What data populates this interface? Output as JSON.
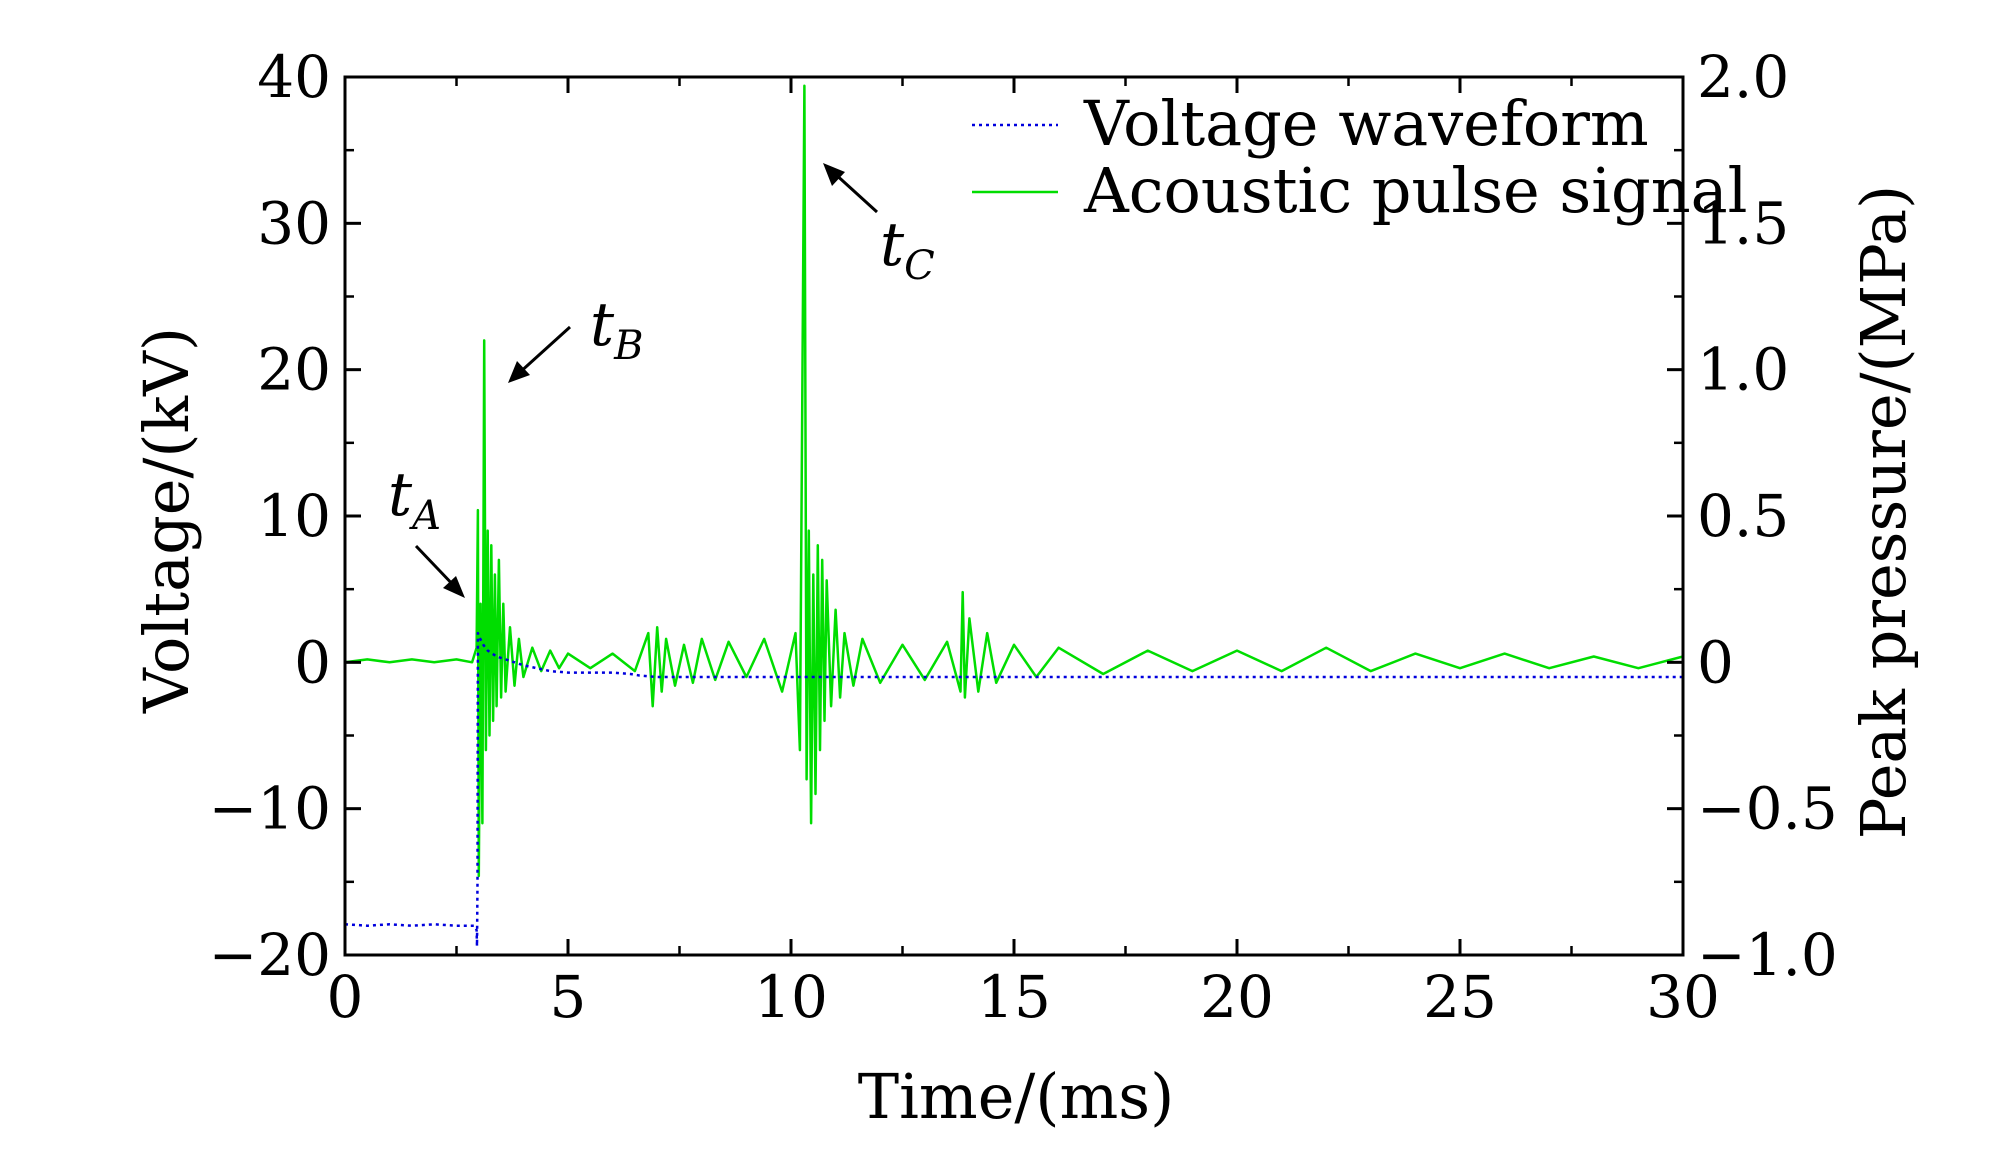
{
  "chart_data": {
    "type": "line",
    "title": "",
    "xlabel": "Time/(ms)",
    "ylabel": "Voltage/(kV)",
    "y2label": "Peak pressure/(MPa)",
    "xlim": [
      0,
      30
    ],
    "ylim": [
      -20,
      40
    ],
    "y2lim": [
      -1.0,
      2.0
    ],
    "x_ticks": [
      "0",
      "5",
      "10",
      "15",
      "20",
      "25",
      "30"
    ],
    "y_ticks": [
      "−20",
      "−10",
      "0",
      "10",
      "20",
      "30",
      "40"
    ],
    "y2_ticks": [
      "−1.0",
      "−0.5",
      "0",
      "0.5",
      "1.0",
      "1.5",
      "2.0"
    ],
    "grid": false,
    "legend_position": "top-right",
    "colors": {
      "voltage": "#0000dd",
      "acoustic": "#00dd00",
      "axis": "#000000"
    },
    "series": [
      {
        "name": "Voltage waveform",
        "axis": "left",
        "style": "dotted",
        "x": [
          0,
          0.5,
          1,
          1.5,
          2,
          2.5,
          2.9,
          2.95,
          2.96,
          2.97,
          2.98,
          3.0,
          3.1,
          3.2,
          3.4,
          3.6,
          3.8,
          4.0,
          4.3,
          4.6,
          5.0,
          5.5,
          6.0,
          6.4,
          6.6,
          7.0,
          8,
          10,
          12,
          14,
          16,
          18,
          20,
          22,
          24,
          26,
          28,
          30
        ],
        "y": [
          -17.9,
          -18.0,
          -17.9,
          -18.0,
          -17.9,
          -18.0,
          -18.0,
          -18.3,
          -19.4,
          -15.0,
          2.0,
          1.8,
          1.2,
          0.8,
          0.4,
          0.2,
          0.0,
          -0.2,
          -0.4,
          -0.6,
          -0.7,
          -0.7,
          -0.7,
          -0.8,
          -0.9,
          -1.0,
          -1.0,
          -1.0,
          -1.0,
          -1.0,
          -1.0,
          -1.0,
          -1.0,
          -1.0,
          -1.0,
          -1.0,
          -1.0,
          -1.0
        ]
      },
      {
        "name": "Acoustic pulse signal",
        "axis": "right",
        "style": "solid",
        "x": [
          0,
          0.5,
          1.0,
          1.5,
          2.0,
          2.5,
          2.85,
          2.95,
          2.98,
          3.0,
          3.04,
          3.08,
          3.12,
          3.16,
          3.2,
          3.24,
          3.28,
          3.32,
          3.36,
          3.4,
          3.45,
          3.5,
          3.55,
          3.6,
          3.7,
          3.8,
          3.9,
          4.0,
          4.2,
          4.4,
          4.6,
          4.8,
          5.0,
          5.5,
          6.0,
          6.5,
          6.8,
          6.9,
          7.0,
          7.1,
          7.2,
          7.4,
          7.6,
          7.8,
          8.0,
          8.3,
          8.6,
          9.0,
          9.4,
          9.8,
          10.1,
          10.2,
          10.3,
          10.35,
          10.4,
          10.45,
          10.5,
          10.55,
          10.6,
          10.65,
          10.7,
          10.75,
          10.8,
          10.9,
          11.0,
          11.1,
          11.2,
          11.4,
          11.6,
          12.0,
          12.5,
          13.0,
          13.5,
          13.8,
          13.85,
          13.9,
          14.0,
          14.2,
          14.4,
          14.6,
          15.0,
          15.5,
          16.0,
          17,
          18,
          19,
          20,
          21,
          22,
          23,
          24,
          25,
          26,
          27,
          28,
          29,
          30
        ],
        "y": [
          0.0,
          0.01,
          0.0,
          0.01,
          0.0,
          0.01,
          0.0,
          0.05,
          0.52,
          -0.73,
          0.2,
          -0.55,
          1.1,
          -0.3,
          0.45,
          -0.25,
          0.4,
          -0.2,
          0.3,
          -0.15,
          0.35,
          -0.12,
          0.2,
          -0.1,
          0.12,
          -0.08,
          0.08,
          -0.05,
          0.05,
          -0.03,
          0.04,
          -0.02,
          0.03,
          -0.02,
          0.03,
          -0.03,
          0.1,
          -0.15,
          0.12,
          -0.1,
          0.08,
          -0.08,
          0.06,
          -0.07,
          0.08,
          -0.06,
          0.07,
          -0.05,
          0.08,
          -0.1,
          0.1,
          -0.3,
          1.97,
          -0.4,
          0.45,
          -0.55,
          0.3,
          -0.45,
          0.4,
          -0.3,
          0.35,
          -0.2,
          0.28,
          -0.15,
          0.18,
          -0.12,
          0.1,
          -0.08,
          0.08,
          -0.07,
          0.06,
          -0.06,
          0.07,
          -0.1,
          0.24,
          -0.12,
          0.15,
          -0.1,
          0.1,
          -0.07,
          0.06,
          -0.05,
          0.05,
          -0.04,
          0.04,
          -0.03,
          0.04,
          -0.03,
          0.05,
          -0.03,
          0.03,
          -0.02,
          0.03,
          -0.02,
          0.02,
          -0.02,
          0.02
        ]
      }
    ],
    "annotations": [
      {
        "label": "t",
        "sub": "A",
        "x": 2.9,
        "y": 2.0
      },
      {
        "label": "t",
        "sub": "B",
        "x": 3.25,
        "y": 19.0
      },
      {
        "label": "t",
        "sub": "C",
        "x": 10.75,
        "y": 34.0
      }
    ]
  }
}
